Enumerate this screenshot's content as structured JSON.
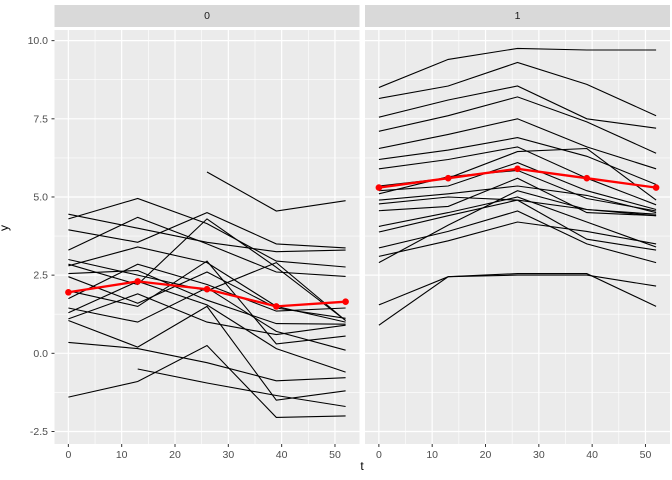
{
  "chart_data": {
    "type": "line",
    "title": "",
    "xlabel": "t",
    "ylabel": "y",
    "x_ticks": [
      0,
      10,
      20,
      30,
      40,
      50
    ],
    "x_tick_labels": [
      "0",
      "10",
      "20",
      "30",
      "40",
      "50"
    ],
    "x_minor_ticks": [
      5,
      15,
      25,
      35,
      45
    ],
    "y_ticks": [
      10.0,
      7.5,
      5.0,
      2.5,
      0.0,
      -2.5
    ],
    "y_tick_labels": [
      "10.0",
      "7.5",
      "5.0",
      "2.5",
      "0.0",
      "-2.5"
    ],
    "y_minor_ticks": [
      8.75,
      6.25,
      3.75,
      1.25,
      -1.25
    ],
    "x_data_range": [
      0,
      52
    ],
    "y_axis_range": [
      -2.9,
      10.34
    ],
    "grid": "on",
    "legend": "none",
    "x": [
      0,
      13,
      26,
      39,
      52
    ],
    "facets": [
      {
        "label": "0",
        "series": [
          {
            "name": "subject",
            "values": [
              4.45,
              4.0,
              3.55,
              3.25,
              3.3
            ]
          },
          {
            "name": "subject",
            "values": [
              4.3,
              4.95,
              4.15,
              2.95,
              2.76
            ]
          },
          {
            "name": "subject",
            "values": [
              3.95,
              3.55,
              4.5,
              3.5,
              3.37
            ]
          },
          {
            "name": "subject",
            "values": [
              3.3,
              4.35,
              3.5,
              2.6,
              2.46
            ]
          },
          {
            "name": "subject",
            "values": [
              2.85,
              2.2,
              4.3,
              2.75,
              1.05
            ]
          },
          {
            "name": "subject",
            "values": [
              2.8,
              3.4,
              2.9,
              1.5,
              1.0
            ]
          },
          {
            "name": "subject",
            "values": [
              2.55,
              2.65,
              1.7,
              0.95,
              0.93
            ]
          },
          {
            "name": "subject",
            "values": [
              2.45,
              1.6,
              2.6,
              1.45,
              1.12
            ]
          },
          {
            "name": "subject",
            "values": [
              2.0,
              1.5,
              2.95,
              0.3,
              0.55
            ]
          },
          {
            "name": "subject",
            "values": [
              1.75,
              2.85,
              2.2,
              1.35,
              1.45
            ]
          },
          {
            "name": "subject",
            "values": [
              1.45,
              1.0,
              2.1,
              0.7,
              0.1
            ]
          },
          {
            "name": "subject",
            "values": [
              1.3,
              2.3,
              1.55,
              0.15,
              -0.6
            ]
          },
          {
            "name": "subject",
            "values": [
              1.1,
              1.9,
              1.0,
              0.6,
              0.9
            ]
          },
          {
            "name": "subject",
            "values": [
              1.05,
              0.2,
              1.5,
              -1.5,
              -1.2
            ]
          },
          {
            "name": "subject",
            "values": [
              0.35,
              0.15,
              -0.3,
              -0.88,
              -0.78
            ]
          },
          {
            "name": "subject",
            "values": [
              -1.4,
              -0.9,
              0.25,
              -2.05,
              -2.0
            ]
          },
          {
            "name": "subject",
            "values": [
              null,
              -0.5,
              -0.95,
              -1.35,
              -1.7
            ]
          },
          {
            "name": "subject",
            "values": [
              null,
              null,
              5.8,
              4.55,
              4.88
            ]
          },
          {
            "name": "subject",
            "values": [
              3.0,
              2.5,
              2.0,
              2.9,
              1.05
            ]
          }
        ],
        "mean_series": {
          "name": "mean",
          "values": [
            1.95,
            2.3,
            2.05,
            1.5,
            1.65
          ]
        }
      },
      {
        "label": "1",
        "series": [
          {
            "name": "subject",
            "values": [
              8.5,
              9.4,
              9.75,
              9.7,
              9.7
            ]
          },
          {
            "name": "subject",
            "values": [
              8.15,
              8.55,
              9.3,
              8.6,
              7.6
            ]
          },
          {
            "name": "subject",
            "values": [
              7.55,
              8.1,
              8.55,
              7.5,
              7.2
            ]
          },
          {
            "name": "subject",
            "values": [
              7.1,
              7.6,
              8.2,
              7.4,
              6.4
            ]
          },
          {
            "name": "subject",
            "values": [
              6.55,
              7.0,
              7.5,
              6.6,
              5.9
            ]
          },
          {
            "name": "subject",
            "values": [
              6.2,
              6.5,
              6.9,
              6.3,
              5.4
            ]
          },
          {
            "name": "subject",
            "values": [
              5.9,
              6.2,
              6.6,
              5.6,
              4.75
            ]
          },
          {
            "name": "subject",
            "values": [
              5.35,
              5.6,
              6.45,
              6.55,
              4.9
            ]
          },
          {
            "name": "subject",
            "values": [
              5.2,
              5.35,
              6.1,
              5.2,
              4.6
            ]
          },
          {
            "name": "subject",
            "values": [
              5.1,
              5.65,
              5.85,
              4.95,
              4.55
            ]
          },
          {
            "name": "subject",
            "values": [
              4.9,
              5.1,
              5.35,
              5.05,
              4.5
            ]
          },
          {
            "name": "subject",
            "values": [
              4.78,
              5.0,
              4.9,
              4.6,
              4.45
            ]
          },
          {
            "name": "subject",
            "values": [
              4.56,
              4.7,
              5.6,
              4.5,
              4.4
            ]
          },
          {
            "name": "subject",
            "values": [
              4.06,
              4.5,
              5.0,
              4.2,
              3.4
            ]
          },
          {
            "name": "subject",
            "values": [
              3.88,
              4.4,
              4.9,
              3.65,
              3.3
            ]
          },
          {
            "name": "subject",
            "values": [
              3.37,
              3.9,
              4.55,
              3.5,
              2.9
            ]
          },
          {
            "name": "subject",
            "values": [
              3.1,
              3.6,
              4.2,
              3.9,
              3.5
            ]
          },
          {
            "name": "subject",
            "values": [
              2.9,
              4.1,
              5.2,
              4.6,
              4.4
            ]
          },
          {
            "name": "subject",
            "values": [
              1.55,
              2.45,
              2.5,
              2.5,
              2.15
            ]
          },
          {
            "name": "subject",
            "values": [
              0.9,
              2.45,
              2.55,
              2.55,
              1.5
            ]
          }
        ],
        "mean_series": {
          "name": "mean",
          "values": [
            5.3,
            5.6,
            5.9,
            5.6,
            5.3
          ]
        }
      }
    ],
    "colors": {
      "background": "#FFFFFF",
      "panel_background": "#EBEBEB",
      "strip_background": "#D9D9D9",
      "gridline": "#FFFFFF",
      "subject_line": "#000000",
      "mean_line": "#FF0000",
      "tick_text": "#4D4D4D",
      "tick_mark": "#333333",
      "strip_text": "#1A1A1A",
      "axis_title": "#000000"
    }
  }
}
